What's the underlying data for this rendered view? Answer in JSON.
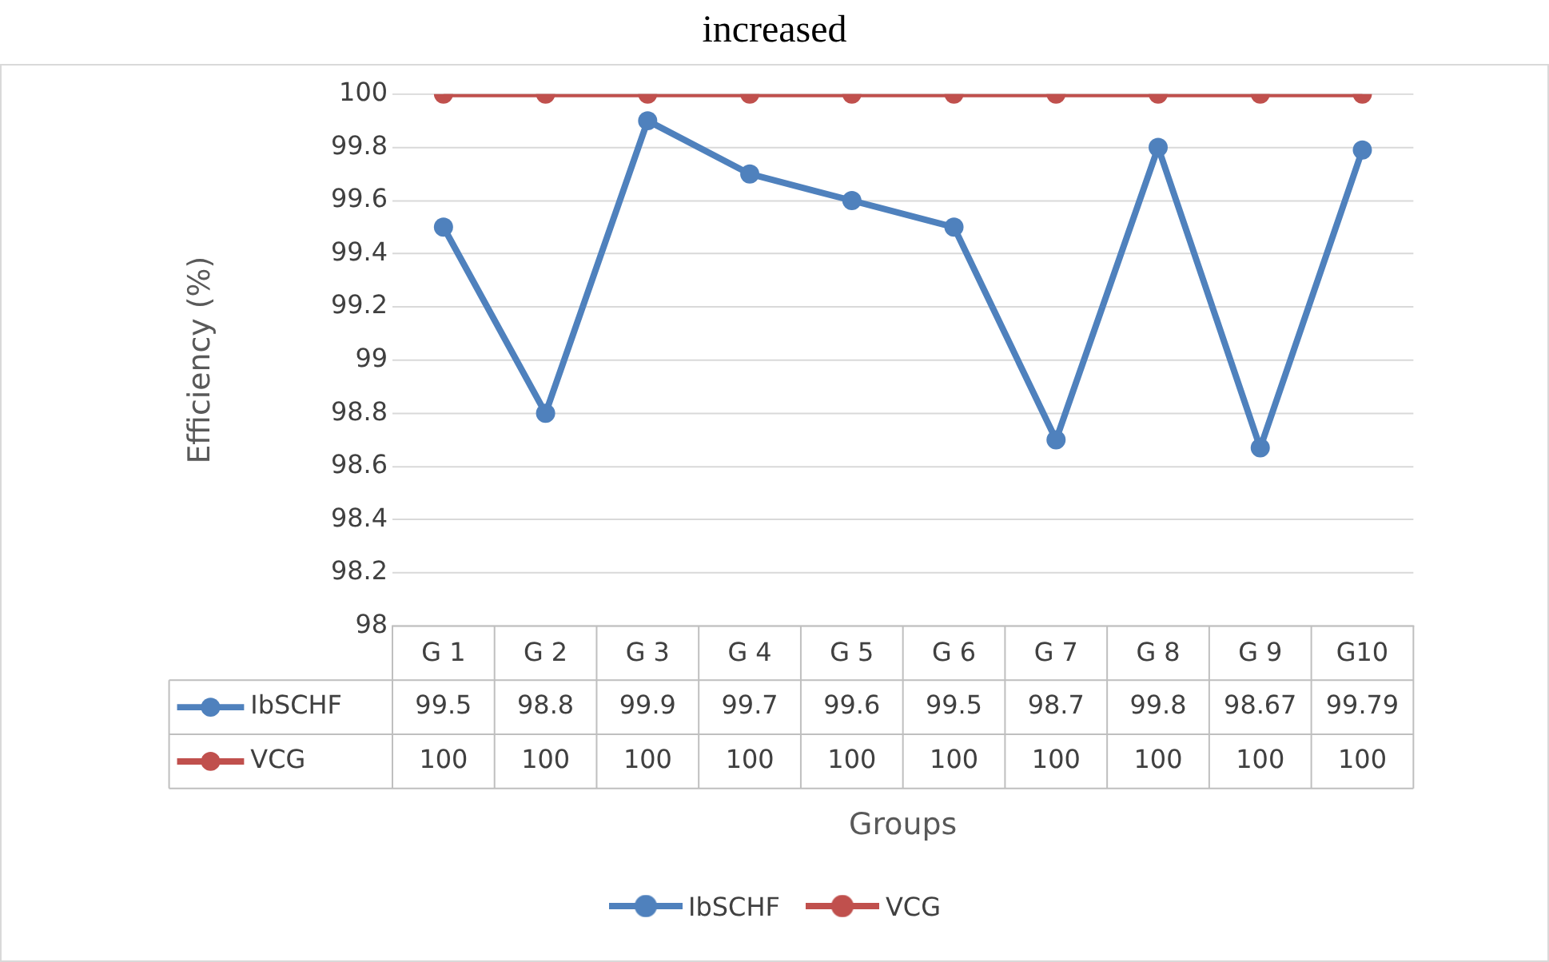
{
  "chart_data": {
    "type": "line",
    "title": "increased",
    "xlabel": "Groups",
    "ylabel": "Efficiency (%)",
    "categories": [
      "G 1",
      "G 2",
      "G 3",
      "G 4",
      "G 5",
      "G 6",
      "G 7",
      "G 8",
      "G 9",
      "G10"
    ],
    "series": [
      {
        "name": "IbSCHF",
        "color": "#4f81bd",
        "values": [
          99.5,
          98.8,
          99.9,
          99.7,
          99.6,
          99.5,
          98.7,
          99.8,
          98.67,
          99.79
        ]
      },
      {
        "name": "VCG",
        "color": "#c0504d",
        "values": [
          100,
          100,
          100,
          100,
          100,
          100,
          100,
          100,
          100,
          100
        ]
      }
    ],
    "ylim": [
      98,
      100
    ],
    "yticks": [
      98,
      98.2,
      98.4,
      98.6,
      98.8,
      99,
      99.2,
      99.4,
      99.6,
      99.8,
      100
    ],
    "grid": "y",
    "legend": "bottom",
    "marker": "circle",
    "line_style": "solid",
    "data_labels": true
  }
}
